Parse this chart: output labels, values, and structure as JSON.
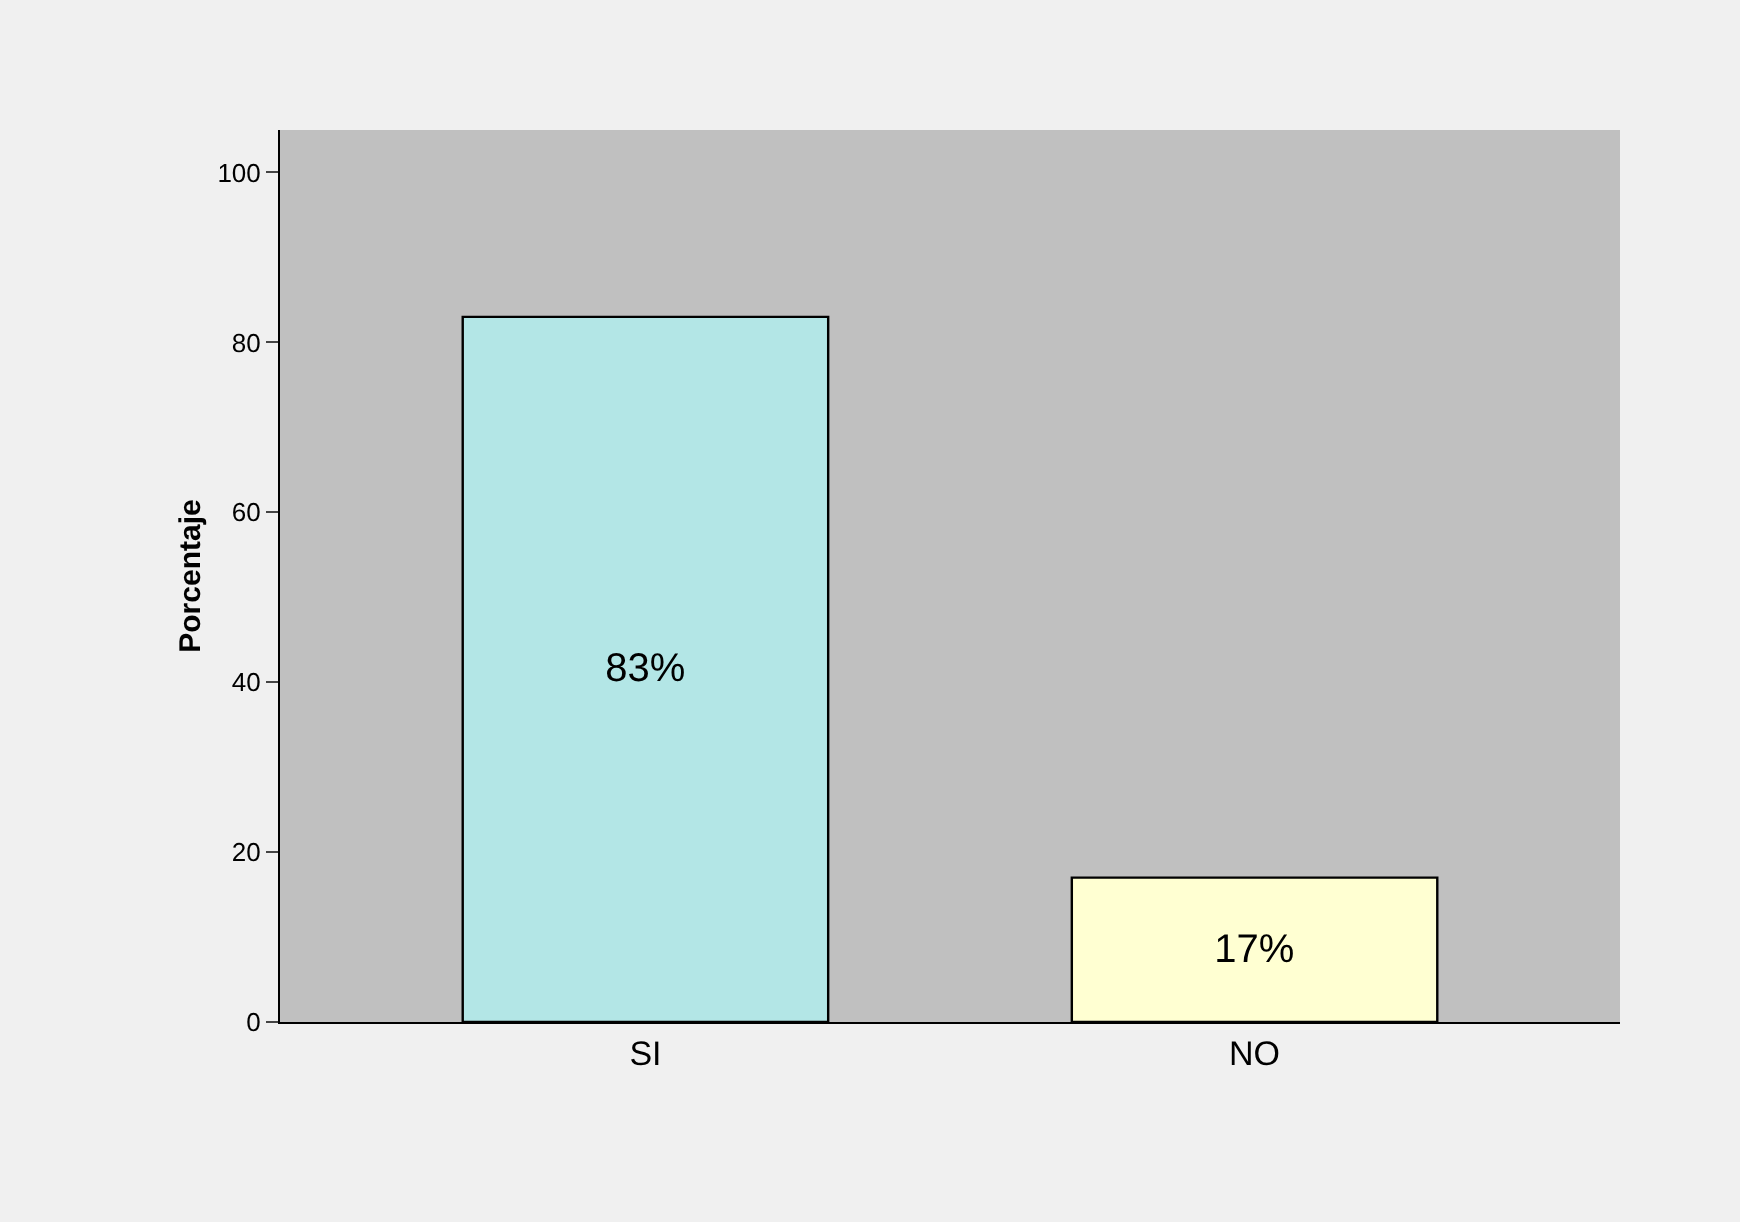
{
  "chart_data": {
    "type": "bar",
    "ylabel": "Porcentaje",
    "categories": [
      "SI",
      "NO"
    ],
    "values": [
      83,
      17
    ],
    "colors": [
      "#b3e6e6",
      "#ffffd2"
    ],
    "value_labels": [
      "83%",
      "17%"
    ],
    "ylim": [
      0,
      105
    ],
    "yticks": [
      0,
      20,
      40,
      60,
      80,
      100
    ],
    "grid": false
  }
}
